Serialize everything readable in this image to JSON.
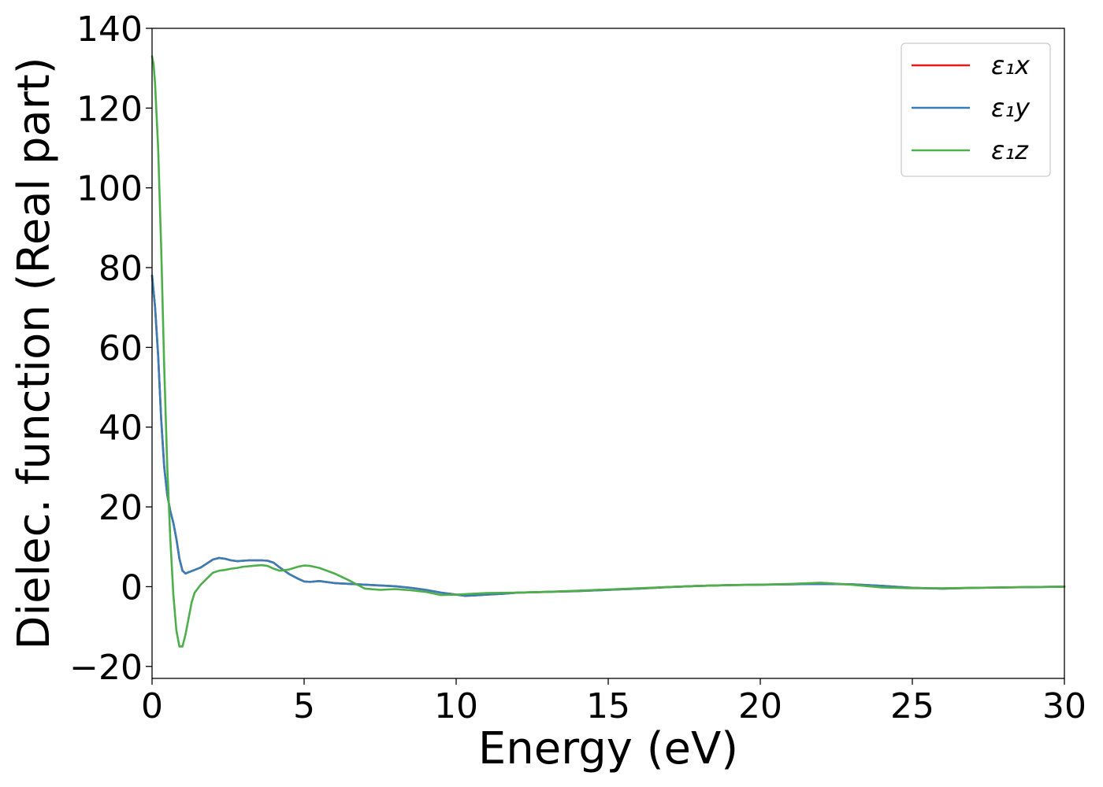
{
  "chart_data": {
    "type": "line",
    "xlabel": "Energy (eV)",
    "ylabel": "Dielec. function (Real part)",
    "xlim": [
      0,
      30
    ],
    "ylim": [
      -23,
      140
    ],
    "xticks": [
      0,
      5,
      10,
      15,
      20,
      25,
      30
    ],
    "xtick_labels": [
      "0",
      "5",
      "10",
      "15",
      "20",
      "25",
      "30"
    ],
    "yticks": [
      -20,
      0,
      20,
      40,
      60,
      80,
      100,
      120,
      140
    ],
    "ytick_labels": [
      "−20",
      "0",
      "20",
      "40",
      "60",
      "80",
      "100",
      "120",
      "140"
    ],
    "grid": false,
    "legend_position": "top-right",
    "series": [
      {
        "name": "ε₁x",
        "color": "#e41a1c",
        "x": [
          0,
          0.1,
          0.2,
          0.3,
          0.4,
          0.5,
          0.6,
          0.7,
          0.8,
          0.9,
          1.0,
          1.1,
          1.2,
          1.4,
          1.6,
          1.8,
          2.0,
          2.2,
          2.4,
          2.6,
          2.8,
          3.0,
          3.2,
          3.4,
          3.6,
          3.8,
          4.0,
          4.2,
          4.5,
          4.8,
          5.0,
          5.2,
          5.5,
          6.0,
          6.5,
          7.0,
          7.5,
          8.0,
          8.5,
          9.0,
          9.5,
          10.0,
          10.3,
          10.6,
          11.0,
          11.5,
          12.0,
          13.0,
          14.0,
          15.0,
          16.0,
          17.0,
          18.0,
          19.0,
          20.0,
          21.0,
          22.0,
          23.0,
          24.0,
          25.0,
          26.0,
          27.0,
          28.0,
          29.0,
          30.0
        ],
        "values": [
          78,
          70,
          58,
          42,
          30,
          23,
          19,
          16,
          12,
          7,
          4,
          3.3,
          3.6,
          4.2,
          4.8,
          5.8,
          6.8,
          7.2,
          7.0,
          6.6,
          6.4,
          6.5,
          6.6,
          6.6,
          6.6,
          6.5,
          6.0,
          4.8,
          3.2,
          2.0,
          1.3,
          1.2,
          1.4,
          0.9,
          0.7,
          0.5,
          0.3,
          0.1,
          -0.3,
          -0.8,
          -1.5,
          -2.0,
          -2.3,
          -2.2,
          -2.0,
          -1.8,
          -1.5,
          -1.3,
          -1.1,
          -0.8,
          -0.5,
          -0.1,
          0.2,
          0.4,
          0.5,
          0.6,
          0.7,
          0.6,
          0.2,
          -0.3,
          -0.5,
          -0.3,
          -0.2,
          -0.1,
          0.0
        ]
      },
      {
        "name": "ε₁y",
        "color": "#377eb8",
        "x": [
          0,
          0.1,
          0.2,
          0.3,
          0.4,
          0.5,
          0.6,
          0.7,
          0.8,
          0.9,
          1.0,
          1.1,
          1.2,
          1.4,
          1.6,
          1.8,
          2.0,
          2.2,
          2.4,
          2.6,
          2.8,
          3.0,
          3.2,
          3.4,
          3.6,
          3.8,
          4.0,
          4.2,
          4.5,
          4.8,
          5.0,
          5.2,
          5.5,
          6.0,
          6.5,
          7.0,
          7.5,
          8.0,
          8.5,
          9.0,
          9.5,
          10.0,
          10.3,
          10.6,
          11.0,
          11.5,
          12.0,
          13.0,
          14.0,
          15.0,
          16.0,
          17.0,
          18.0,
          19.0,
          20.0,
          21.0,
          22.0,
          23.0,
          24.0,
          25.0,
          26.0,
          27.0,
          28.0,
          29.0,
          30.0
        ],
        "values": [
          78,
          70,
          58,
          42,
          30,
          23,
          19,
          16,
          12,
          7,
          4,
          3.3,
          3.6,
          4.2,
          4.8,
          5.8,
          6.8,
          7.2,
          7.0,
          6.6,
          6.4,
          6.5,
          6.6,
          6.6,
          6.6,
          6.5,
          6.0,
          4.8,
          3.2,
          2.0,
          1.3,
          1.2,
          1.4,
          0.9,
          0.7,
          0.5,
          0.3,
          0.1,
          -0.3,
          -0.8,
          -1.5,
          -2.0,
          -2.3,
          -2.2,
          -2.0,
          -1.8,
          -1.5,
          -1.3,
          -1.1,
          -0.8,
          -0.5,
          -0.1,
          0.2,
          0.4,
          0.5,
          0.6,
          0.7,
          0.6,
          0.2,
          -0.3,
          -0.5,
          -0.3,
          -0.2,
          -0.1,
          0.0
        ]
      },
      {
        "name": "ε₁z",
        "color": "#4daf4a",
        "x": [
          0,
          0.05,
          0.1,
          0.2,
          0.3,
          0.4,
          0.5,
          0.6,
          0.7,
          0.8,
          0.9,
          1.0,
          1.1,
          1.2,
          1.3,
          1.4,
          1.5,
          1.6,
          1.8,
          2.0,
          2.2,
          2.4,
          2.6,
          2.8,
          3.0,
          3.3,
          3.6,
          3.8,
          4.0,
          4.2,
          4.5,
          4.8,
          5.0,
          5.2,
          5.5,
          6.0,
          6.5,
          7.0,
          7.5,
          8.0,
          8.5,
          9.0,
          9.5,
          10.0,
          10.5,
          11.0,
          12.0,
          13.0,
          14.0,
          15.0,
          16.0,
          17.0,
          18.0,
          19.0,
          20.0,
          21.0,
          22.0,
          23.0,
          24.0,
          25.0,
          26.0,
          27.0,
          28.0,
          29.0,
          30.0
        ],
        "values": [
          133,
          131,
          126,
          110,
          85,
          55,
          30,
          12,
          -2,
          -11,
          -15,
          -15,
          -12,
          -8,
          -4,
          -1.5,
          -0.5,
          0.5,
          2.0,
          3.5,
          4.0,
          4.2,
          4.5,
          4.7,
          5.0,
          5.2,
          5.4,
          5.2,
          4.5,
          4.0,
          4.3,
          5.0,
          5.3,
          5.2,
          4.7,
          3.3,
          1.5,
          -0.5,
          -0.8,
          -0.6,
          -0.9,
          -1.3,
          -2.1,
          -2.0,
          -1.8,
          -1.6,
          -1.5,
          -1.3,
          -1.0,
          -0.7,
          -0.4,
          -0.1,
          0.2,
          0.4,
          0.5,
          0.7,
          1.0,
          0.5,
          -0.2,
          -0.4,
          -0.4,
          -0.3,
          -0.2,
          -0.1,
          0.0
        ]
      }
    ]
  }
}
